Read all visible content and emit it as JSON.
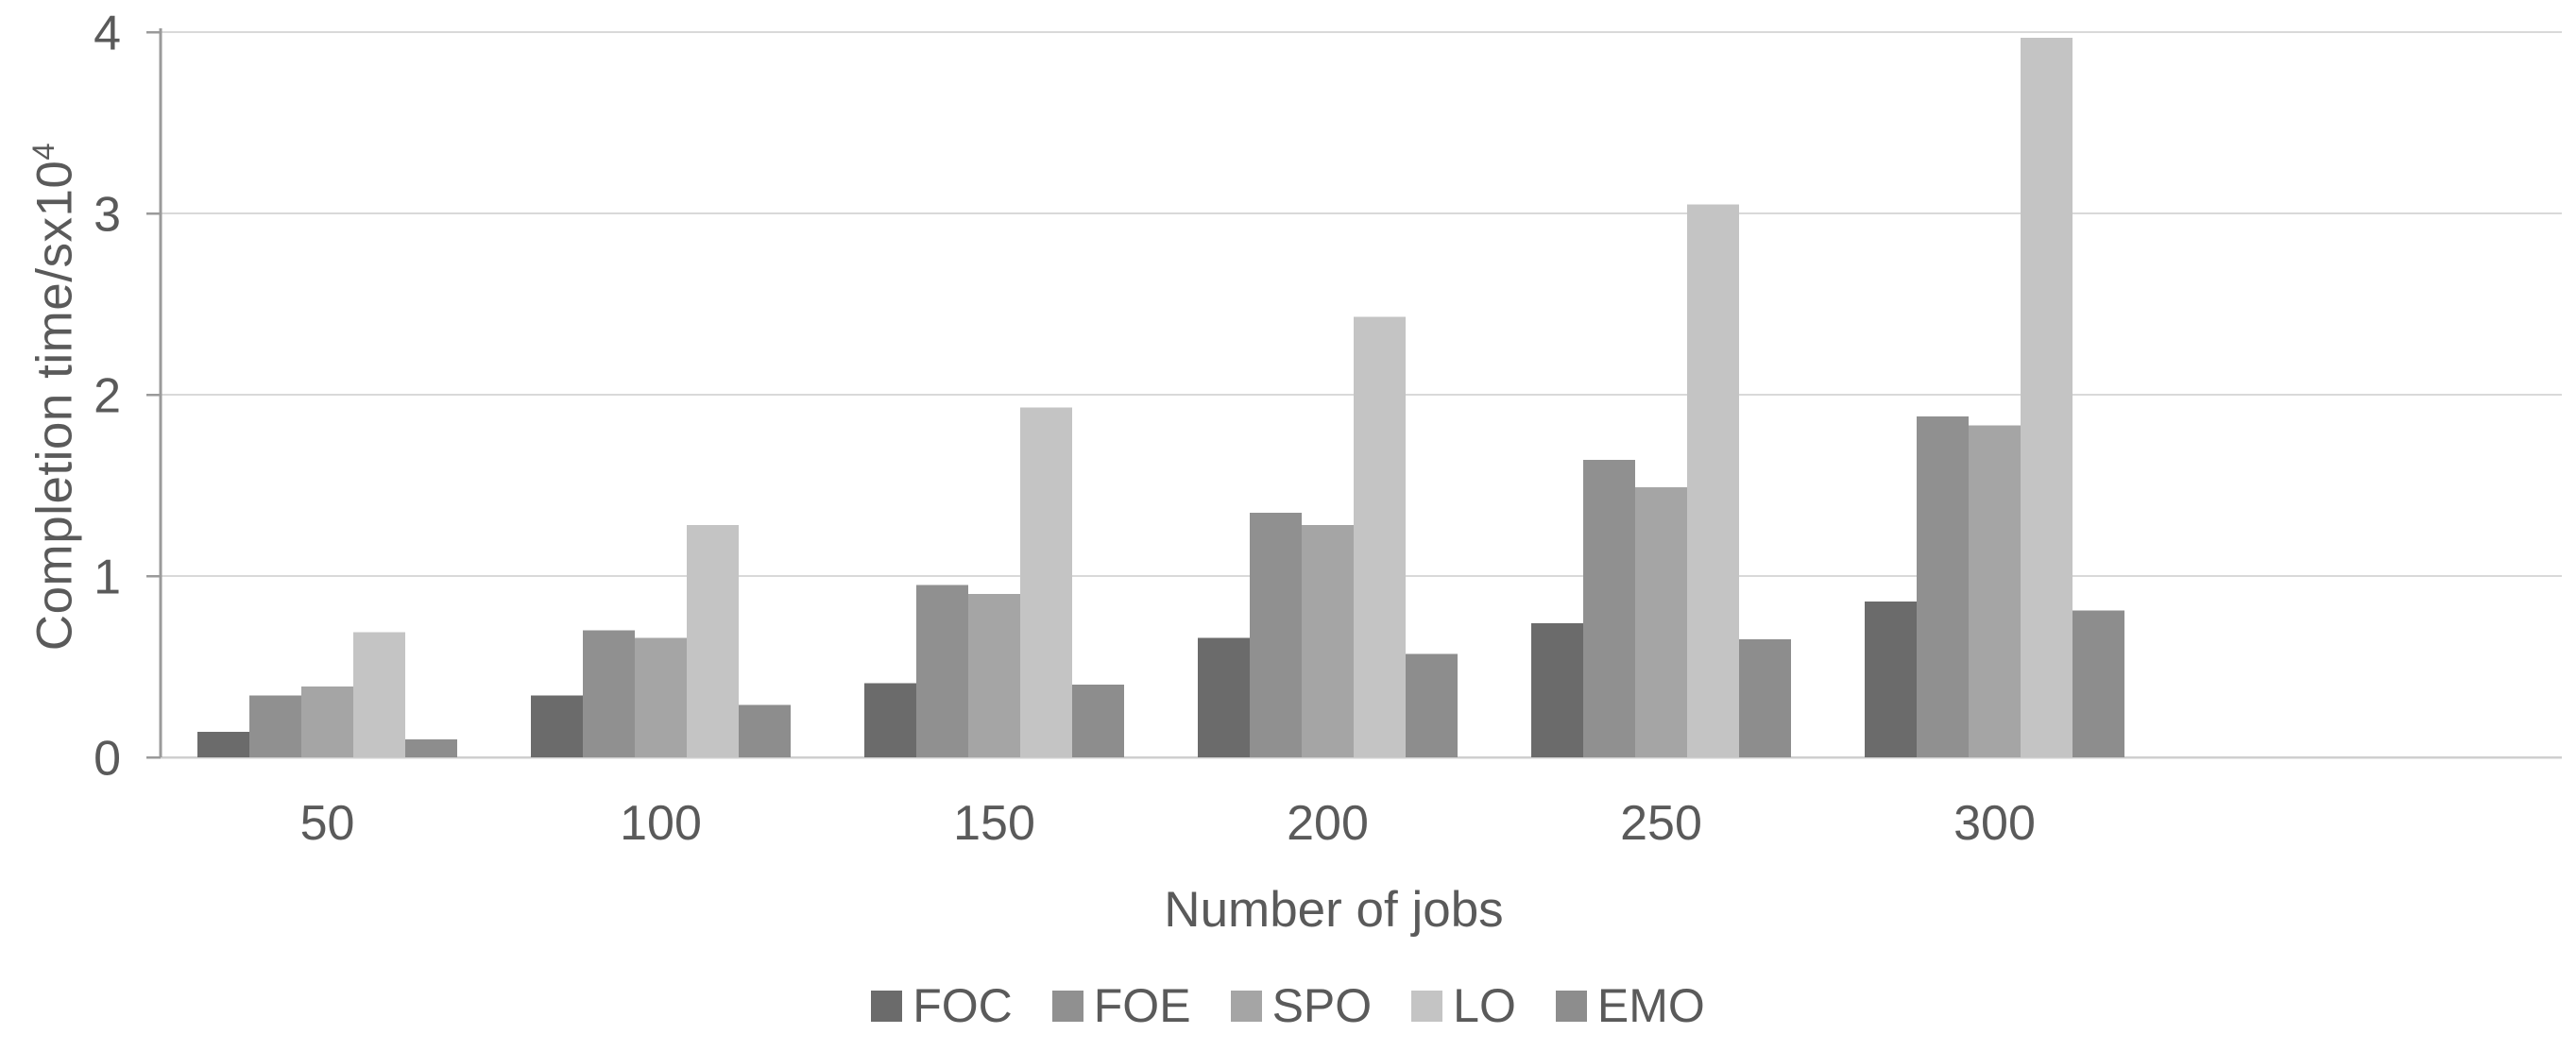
{
  "figure": {
    "background": "#ffffff"
  },
  "chart_data": {
    "type": "bar",
    "title": "",
    "xlabel": "Number of jobs",
    "ylabel_base": "Completion time/sx10",
    "ylabel_superscript": "4",
    "categories": [
      "50",
      "100",
      "150",
      "200",
      "250",
      "300"
    ],
    "series": [
      {
        "name": "FOC",
        "color": "#6b6b6b",
        "values": [
          0.14,
          0.34,
          0.41,
          0.66,
          0.74,
          0.86
        ]
      },
      {
        "name": "FOE",
        "color": "#909090",
        "values": [
          0.34,
          0.7,
          0.95,
          1.35,
          1.64,
          1.88
        ]
      },
      {
        "name": "SPO",
        "color": "#a5a5a5",
        "values": [
          0.39,
          0.66,
          0.9,
          1.28,
          1.49,
          1.83
        ]
      },
      {
        "name": "LO",
        "color": "#c4c4c4",
        "values": [
          0.69,
          1.28,
          1.93,
          2.43,
          3.05,
          3.97
        ]
      },
      {
        "name": "EMO",
        "color": "#8d8d8d",
        "values": [
          0.1,
          0.29,
          0.4,
          0.57,
          0.65,
          0.81
        ]
      }
    ],
    "yticks": [
      0,
      1,
      2,
      3,
      4
    ],
    "ylim": [
      0,
      4
    ],
    "grid": true,
    "legend_position": "bottom",
    "axis_color": "#9a9a9a",
    "gridline_color": "#d9d9d9",
    "baseline_color": "#cfcfcf",
    "text_color": "#5a5a5a"
  }
}
